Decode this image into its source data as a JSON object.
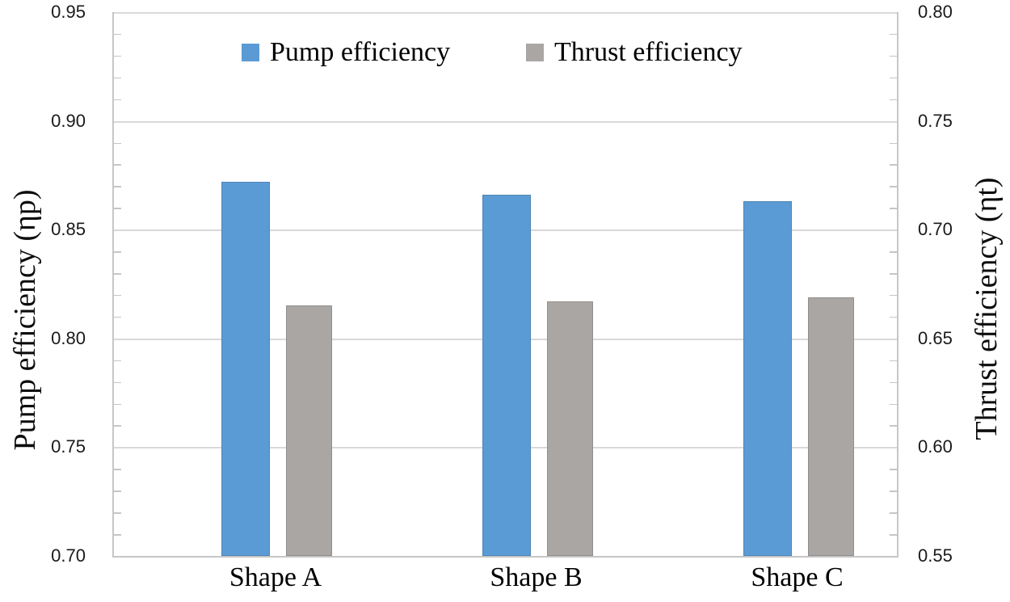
{
  "chart_data": {
    "type": "bar",
    "categories": [
      "Shape A",
      "Shape B",
      "Shape C"
    ],
    "series": [
      {
        "name": "Pump efficiency",
        "axis": "left",
        "color": "#5B9BD5",
        "values": [
          0.872,
          0.866,
          0.863
        ]
      },
      {
        "name": "Thrust efficiency",
        "axis": "right",
        "color": "#A9A6A4",
        "values": [
          0.665,
          0.667,
          0.669
        ]
      }
    ],
    "left_axis": {
      "label": "Pump efficiency (ηp)",
      "min": 0.7,
      "max": 0.95,
      "major_step": 0.05,
      "minor_step": 0.01,
      "ticks": [
        "0.95",
        "0.90",
        "0.85",
        "0.80",
        "0.75",
        "0.70"
      ]
    },
    "right_axis": {
      "label": "Thrust efficiency (ηt)",
      "min": 0.55,
      "max": 0.8,
      "major_step": 0.05,
      "minor_step": 0.01,
      "ticks": [
        "0.80",
        "0.75",
        "0.70",
        "0.65",
        "0.60",
        "0.55"
      ]
    },
    "legend": {
      "position": "top-inside",
      "entries": [
        "Pump efficiency",
        "Thrust efficiency"
      ]
    },
    "grid": true,
    "colors": {
      "grid": "#D9D9D9",
      "axis_line": "#C6C6C6",
      "tick_text": "#1A1A1A",
      "background": "#FFFFFF"
    }
  }
}
